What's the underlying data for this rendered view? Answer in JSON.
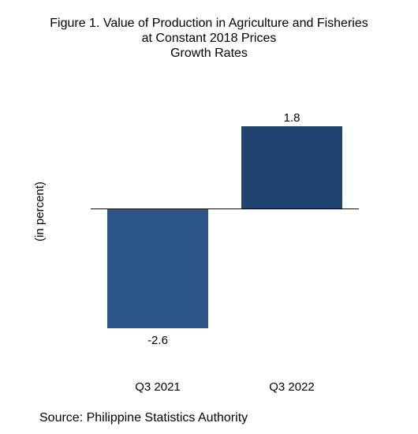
{
  "chart_data": {
    "type": "bar",
    "title_lines": [
      "Figure 1. Value of Production in Agriculture and Fisheries",
      "at Constant 2018 Prices",
      "Growth Rates"
    ],
    "ylabel": "(in percent)",
    "xlabel": "",
    "categories": [
      "Q3 2021",
      "Q3 2022"
    ],
    "values": [
      -2.6,
      1.8
    ],
    "data_labels": [
      "-2.6",
      "1.8"
    ],
    "bar_colors": [
      "#2b5589",
      "#20426f"
    ],
    "ylim": [
      -2.6,
      1.8
    ],
    "grid": false,
    "legend": "none"
  },
  "footer": {
    "source": "Source: Philippine Statistics Authority"
  }
}
